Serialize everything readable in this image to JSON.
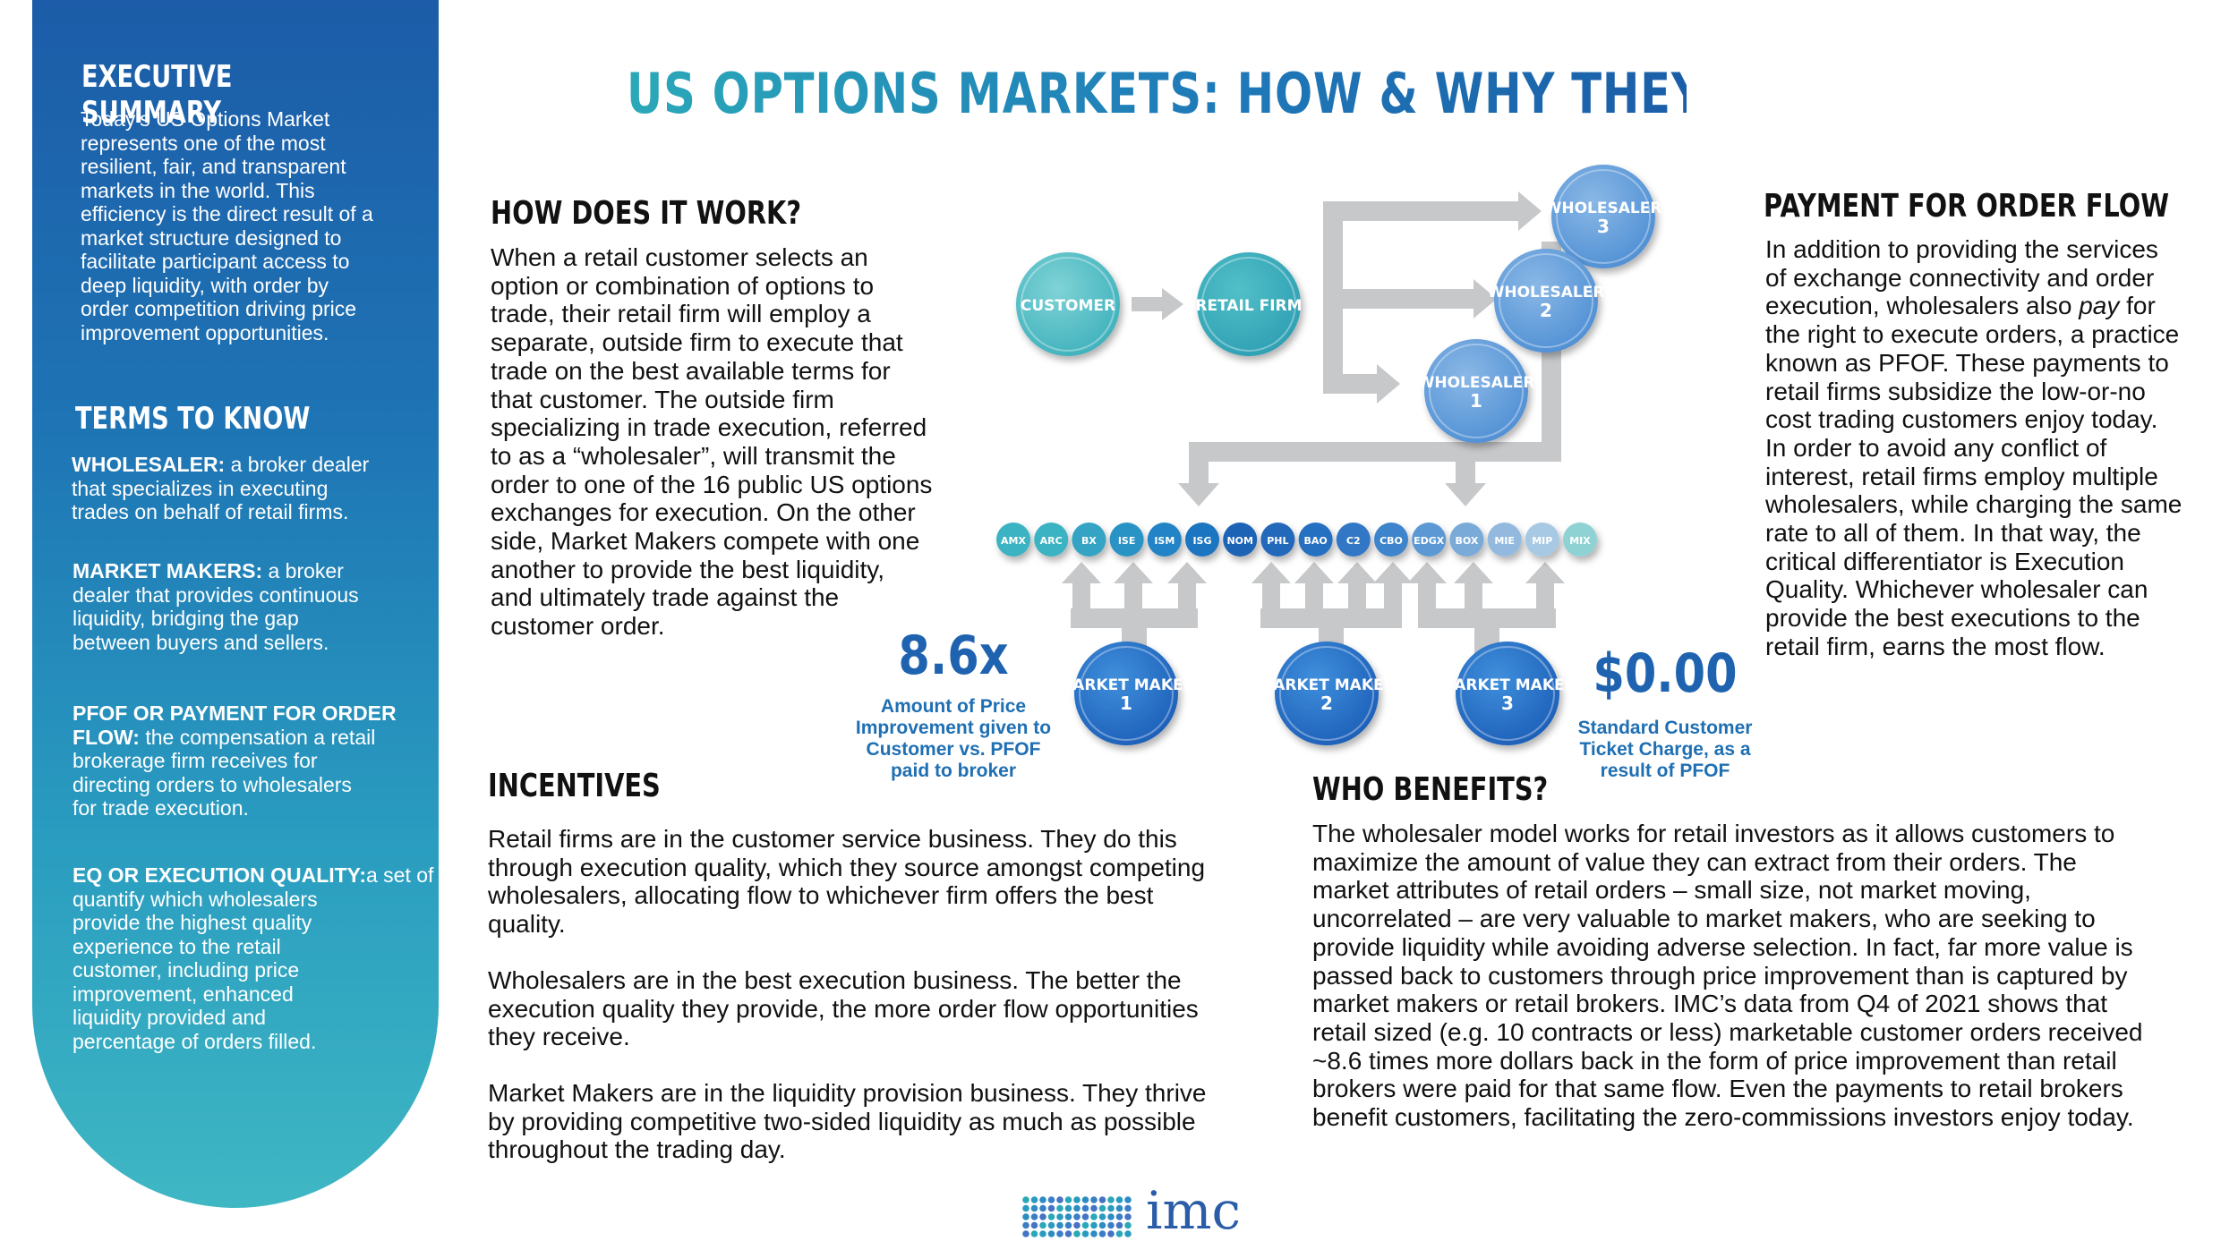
{
  "title": "US OPTIONS MARKETS: HOW & WHY THEY’RE BEST IN THE WORLD",
  "sidebar": {
    "exec_heading": "EXECUTIVE SUMMARY",
    "exec_lines": [
      "Today’s US Options Market",
      "represents one of the most",
      "resilient, fair, and transparent",
      "markets in the world. This",
      "efficiency is the direct result of a",
      "market structure designed to",
      "facilitate participant access to",
      "deep liquidity, with order by",
      "order competition driving price",
      "improvement opportunities."
    ],
    "terms_heading": "TERMS TO KNOW",
    "terms": [
      {
        "title": "WHOLESALER:",
        "lines": [
          " a broker dealer",
          "that specializes in executing",
          "trades on behalf of retail firms."
        ]
      },
      {
        "title": "MARKET MAKERS:",
        "lines": [
          " a broker",
          "dealer that provides continuous",
          "liquidity, bridging the gap",
          "between buyers and sellers."
        ]
      },
      {
        "title": "PFOF OR PAYMENT FOR ORDER",
        "lines": [
          "FLOW:|| the compensation a retail",
          "brokerage firm receives for",
          "directing orders to wholesalers",
          "for trade execution."
        ]
      },
      {
        "title": "EQ OR EXECUTION QUALITY:",
        "lines": [
          "a set of statistics used to",
          "quantify which wholesalers",
          "provide the  highest quality",
          "experience to the retail",
          "customer, including price",
          "improvement, enhanced",
          "liquidity provided and",
          "percentage of orders filled."
        ]
      }
    ]
  },
  "how": {
    "heading": "HOW DOES IT WORK?",
    "lines": [
      "When a retail customer selects an",
      "option or combination of options to",
      "trade, their retail firm will employ a",
      "separate, outside firm to execute that",
      "trade on the best available terms for",
      "that customer. The outside firm",
      "specializing in trade execution, referred",
      "to as a “wholesaler”, will transmit the",
      "order to one of the 16 public US options",
      "exchanges for execution. On the other",
      "side, Market Makers compete with one",
      "another to provide the best liquidity,",
      "and ultimately trade against the",
      "customer order."
    ]
  },
  "pfof": {
    "heading": "PAYMENT FOR ORDER FLOW",
    "lines": [
      "In addition to providing the services",
      "of exchange connectivity and order",
      "execution, wholesalers also |pay| for",
      "the right to execute orders, a practice",
      "known as PFOF. These payments to",
      "retail firms subsidize the low-or-no",
      "cost trading customers enjoy today.",
      "In order to avoid any conflict of",
      "interest, retail firms employ multiple",
      "wholesalers, while charging the same",
      "rate to all of them. In that way, the",
      "critical differentiator is Execution",
      "Quality.  Whichever wholesaler can",
      "provide the best executions to the",
      "retail firm, earns the most flow."
    ]
  },
  "incentives": {
    "heading": "INCENTIVES",
    "paragraphs": [
      [
        "Retail firms are in the customer service business. They do this",
        "through execution quality, which they source amongst competing",
        "wholesalers, allocating flow to whichever firm offers the best",
        "quality."
      ],
      [
        "Wholesalers are in the best execution business. The better the",
        "execution quality they provide, the more order flow opportunities",
        "they receive."
      ],
      [
        "Market Makers are in the liquidity provision business. They thrive",
        "by providing competitive two-sided liquidity as much as possible",
        "throughout the trading day."
      ]
    ]
  },
  "benefits": {
    "heading": "WHO BENEFITS?",
    "lines": [
      "The wholesaler model works for retail investors as it allows customers to",
      "maximize the amount of value they can extract from their orders. The",
      "market attributes of retail orders – small size, not market moving,",
      "uncorrelated – are very valuable to market makers, who are seeking to",
      "provide liquidity while avoiding adverse selection. In fact, far more value is",
      "passed back to customers through price improvement than is captured by",
      "market makers or retail brokers. IMC’s data from Q4 of 2021 shows that",
      "retail sized (e.g. 10 contracts or less) marketable customer orders received",
      "~8.6 times more dollars back in the form of price improvement than retail",
      "brokers were paid for that same flow. Even the payments to retail brokers",
      "benefit customers, facilitating the zero-commissions investors enjoy today."
    ]
  },
  "diagram": {
    "customer": "CUSTOMER",
    "retail_firm": "RETAIL FIRM",
    "wholesalers": [
      {
        "label": "WHOLESALER",
        "num": "3"
      },
      {
        "label": "WHOLESALER",
        "num": "2"
      },
      {
        "label": "WHOLESALER",
        "num": "1"
      }
    ],
    "exchanges": [
      "AMX",
      "ARC",
      "BX",
      "ISE",
      "ISM",
      "ISG",
      "NOM",
      "PHL",
      "BAO",
      "C2",
      "CBO",
      "EDGX",
      "BOX",
      "MIE",
      "MIP",
      "MIX"
    ],
    "market_makers": [
      {
        "label": "MARKET MAKER",
        "num": "1"
      },
      {
        "label": "MARKET MAKER",
        "num": "2"
      },
      {
        "label": "MARKET MAKER",
        "num": "3"
      }
    ],
    "colors": {
      "teal": "#3bb9c3",
      "blue": "#1f6fc0",
      "arrow": "#c7c8ca"
    }
  },
  "stats": {
    "pi_value": "8.6x",
    "pi_caption": [
      "Amount of Price",
      "Improvement given to",
      "Customer vs. PFOF",
      "paid to broker"
    ],
    "charge_value": "$0.00",
    "charge_caption": [
      "Standard Customer",
      "Ticket Charge, as a",
      "result of PFOF"
    ]
  },
  "logo": {
    "text": "imc"
  }
}
